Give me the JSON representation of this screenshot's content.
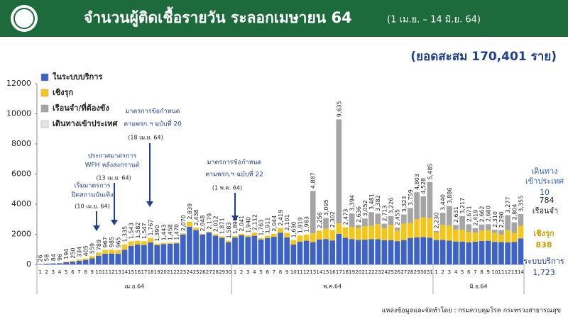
{
  "chart_data": {
    "type": "stacked_bar",
    "title": "จำนวนผู้ติดเชื้อรายวัน ระลอกเมษายน 64",
    "date_range": "(1 เม.ย. – 14 มิ.ย. 64)",
    "subtitle": "(ยอดสะสม 170,401 ราย)",
    "source": "แหล่งข้อมูลและจัดทำโดย : กรมควบคุมโรค กระทรวงสาธารณสุข",
    "months": [
      "เม.ย.64",
      "พ.ค.64",
      "มิ.ย.64"
    ],
    "categories": [
      "1",
      "2",
      "3",
      "4",
      "5",
      "6",
      "7",
      "8",
      "9",
      "10",
      "11",
      "12",
      "13",
      "14",
      "15",
      "16",
      "17",
      "18",
      "19",
      "20",
      "21",
      "22",
      "23",
      "24",
      "25",
      "26",
      "27",
      "28",
      "29",
      "30",
      "1",
      "2",
      "3",
      "4",
      "5",
      "6",
      "7",
      "8",
      "9",
      "10",
      "11",
      "12",
      "13",
      "14",
      "15",
      "16",
      "17",
      "18",
      "19",
      "20",
      "21",
      "22",
      "23",
      "24",
      "25",
      "26",
      "27",
      "28",
      "29",
      "30",
      "31",
      "1",
      "2",
      "3",
      "4",
      "5",
      "6",
      "7",
      "8",
      "9",
      "10",
      "11",
      "12",
      "13",
      "14"
    ],
    "series": [
      {
        "name": "ในระบบบริการ",
        "color": "#3d63c9",
        "values": [
          20,
          50,
          64,
          76,
          144,
          180,
          244,
          295,
          399,
          579,
          707,
          725,
          705,
          975,
          1233,
          1322,
          1287,
          1457,
          1280,
          1353,
          1368,
          1400,
          1990,
          2499,
          2278,
          1978,
          2119,
          1902,
          1761,
          1473,
          1781,
          1931,
          1830,
          1902,
          1653,
          1751,
          1834,
          2109,
          1791,
          1320,
          1509,
          1573,
          1477,
          1646,
          1685,
          1592,
          2025,
          1763,
          1684,
          1626,
          1642,
          1671,
          1672,
          1603,
          1616,
          1545,
          1613,
          1749,
          1793,
          1818,
          1775,
          1620,
          1630,
          1576,
          1521,
          1507,
          1461,
          1509,
          1552,
          1570,
          1500,
          1480,
          1467,
          1494,
          1723
        ]
      },
      {
        "name": "เชิงรุก",
        "color": "#f5c518",
        "values": [
          0,
          0,
          10,
          10,
          40,
          60,
          80,
          100,
          150,
          200,
          250,
          250,
          250,
          350,
          300,
          250,
          250,
          300,
          100,
          80,
          80,
          60,
          70,
          330,
          150,
          60,
          50,
          100,
          100,
          100,
          100,
          100,
          100,
          200,
          100,
          150,
          200,
          300,
          300,
          300,
          400,
          400,
          600,
          600,
          700,
          700,
          700,
          700,
          800,
          800,
          900,
          900,
          1000,
          800,
          1000,
          700,
          1100,
          1000,
          1200,
          1300,
          1300,
          500,
          1000,
          1000,
          800,
          800,
          700,
          600,
          700,
          700,
          600,
          500,
          800,
          600,
          838
        ]
      },
      {
        "name": "เรือนจำ/ที่ต้องขัง",
        "color": "#a5a5a5",
        "values": [
          0,
          0,
          0,
          0,
          0,
          0,
          0,
          0,
          0,
          0,
          0,
          0,
          0,
          0,
          0,
          0,
          0,
          0,
          0,
          0,
          0,
          0,
          0,
          0,
          0,
          0,
          0,
          0,
          0,
          0,
          0,
          0,
          0,
          0,
          0,
          0,
          0,
          0,
          0,
          0,
          0,
          0,
          2800,
          0,
          700,
          0,
          6900,
          0,
          900,
          200,
          500,
          900,
          700,
          300,
          600,
          200,
          600,
          1000,
          1800,
          1400,
          2400,
          100,
          800,
          1300,
          300,
          900,
          500,
          300,
          400,
          400,
          200,
          300,
          1000,
          700,
          784
        ]
      },
      {
        "name": "เดินทางเข้าประเทศ",
        "color": "#e6e6e6",
        "values": [
          6,
          8,
          10,
          10,
          10,
          10,
          10,
          10,
          10,
          10,
          10,
          10,
          10,
          10,
          10,
          10,
          10,
          10,
          10,
          10,
          10,
          10,
          10,
          10,
          10,
          10,
          10,
          10,
          10,
          10,
          10,
          10,
          10,
          10,
          10,
          10,
          10,
          10,
          10,
          10,
          10,
          10,
          10,
          10,
          10,
          10,
          10,
          10,
          10,
          10,
          10,
          10,
          10,
          10,
          10,
          10,
          10,
          10,
          10,
          10,
          10,
          10,
          10,
          10,
          10,
          10,
          10,
          10,
          10,
          10,
          10,
          10,
          10,
          10,
          10
        ]
      }
    ],
    "total_labels": [
      "26",
      "58",
      "84",
      "96",
      "194",
      "250",
      "334",
      "405",
      "559",
      "789",
      "967",
      "985",
      "965",
      "1,335",
      "1,543",
      "1,582",
      "1,547",
      "1,767",
      "1,390",
      "1,443",
      "1,458",
      "1,470",
      "2,070",
      "2,839",
      "2,438",
      "2,048",
      "2,179",
      "2,012",
      "1,871",
      "1,583",
      "1,891",
      "2,041",
      "1,940",
      "2,112",
      "1,763",
      "1,911",
      "2,044",
      "2,419",
      "2,101",
      "1,630",
      "1,919",
      "1,983",
      "4,887",
      "2,256",
      "3,095",
      "2,302",
      "9,635",
      "2,473",
      "3,394",
      "2,636",
      "3,052",
      "3,481",
      "3,382",
      "2,713",
      "3,226",
      "2,455",
      "3,323",
      "3,759",
      "4,803",
      "4,528",
      "5,485",
      "2,230",
      "3,440",
      "3,886",
      "2,631",
      "3,217",
      "2,671",
      "2,419",
      "2,662",
      "2,680",
      "2,310",
      "2,290",
      "3,277",
      "2,804",
      "3,355"
    ],
    "ylim": [
      0,
      12000
    ],
    "yticks": [
      0,
      2000,
      4000,
      6000,
      8000,
      10000,
      12000
    ],
    "legend": "top-left",
    "annotations": [
      {
        "lines": [
          "เริ่มมาตรการ",
          "ปิดสถานบันเทิง"
        ],
        "date": "(10 เม.ย. 64)"
      },
      {
        "lines": [
          "ประกาศมาตรการ",
          "WFH หลังสงกรานต์"
        ],
        "date": "(13 เม.ย. 64)"
      },
      {
        "lines": [
          "มาตรการข้อกำหนด",
          "ตามพรก.ฯ ฉบับที่ 20"
        ],
        "date": "(18 เม.ย. 64)"
      },
      {
        "lines": [
          "มาตรการข้อกำหนด",
          "ตามพรก.ฯ ฉบับที่ 22"
        ],
        "date": "(1 พ.ค. 64)"
      }
    ],
    "end_labels": [
      {
        "lines": [
          "ระบบบริการ"
        ],
        "value_label": "1,723"
      },
      {
        "lines": [
          "เชิงรุก"
        ],
        "value_label": "838"
      },
      {
        "lines": [
          "เรือนจำ"
        ],
        "value_label": "784"
      },
      {
        "lines": [
          "เดินทาง",
          "เข้าประเทศ"
        ],
        "value_label": "10"
      }
    ]
  }
}
